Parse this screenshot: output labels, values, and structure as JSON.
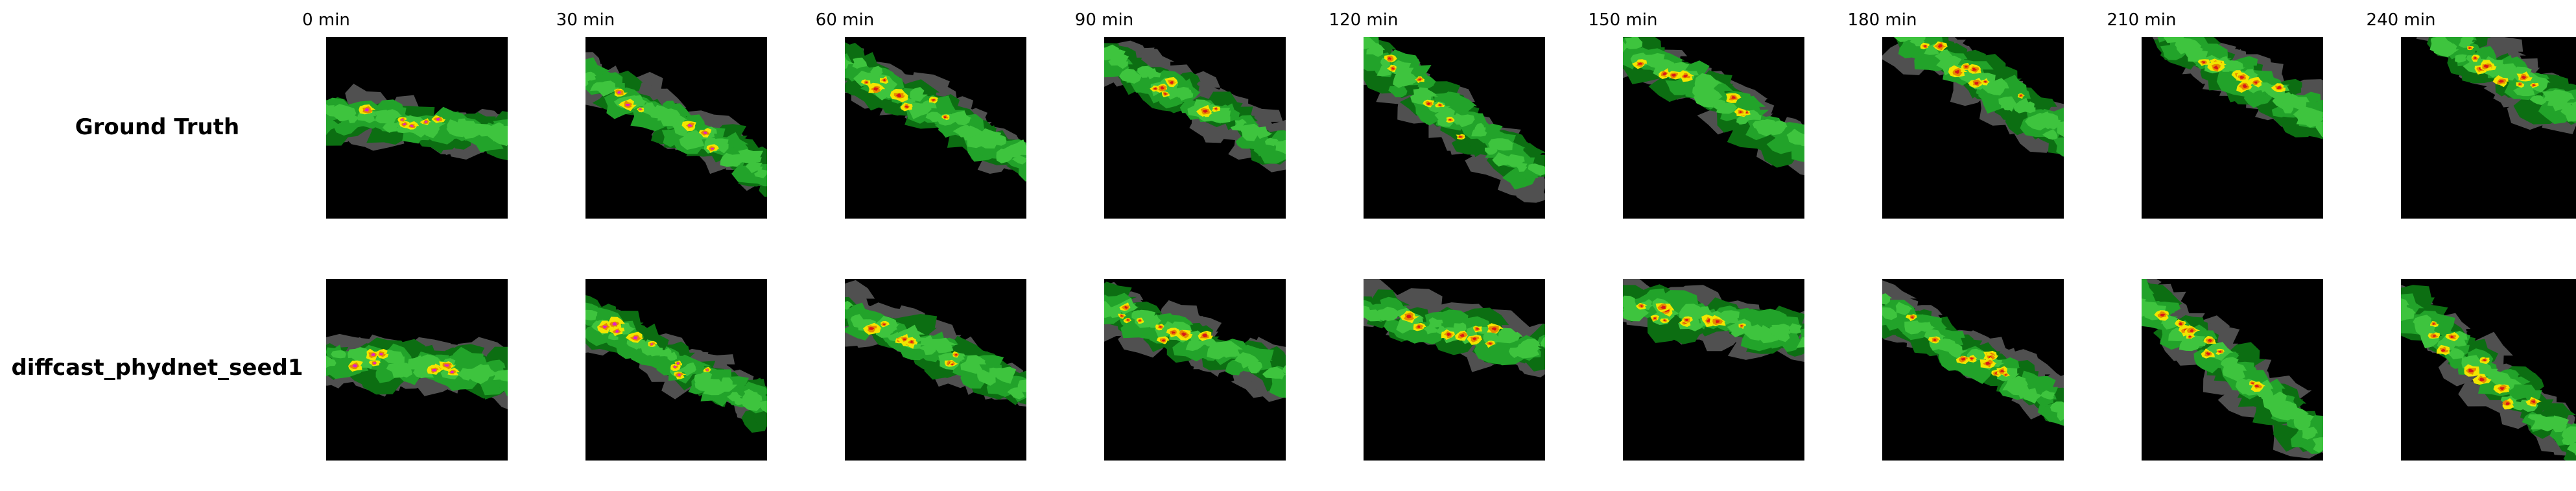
{
  "time_labels": [
    "0 min",
    "30 min",
    "60 min",
    "90 min",
    "120 min",
    "150 min",
    "180 min",
    "210 min",
    "240 min"
  ],
  "rows": [
    {
      "label": "Ground Truth"
    },
    {
      "label": "diffcast_phydnet_seed1"
    }
  ],
  "colors": {
    "background": "#000000",
    "gray": "#505050",
    "dark_green": "#0c6e12",
    "green": "#22a32a",
    "light_green": "#3ec43e",
    "yellow": "#f2e600",
    "orange": "#e88a00",
    "red": "#d81818",
    "magenta": "#e020c8"
  }
}
